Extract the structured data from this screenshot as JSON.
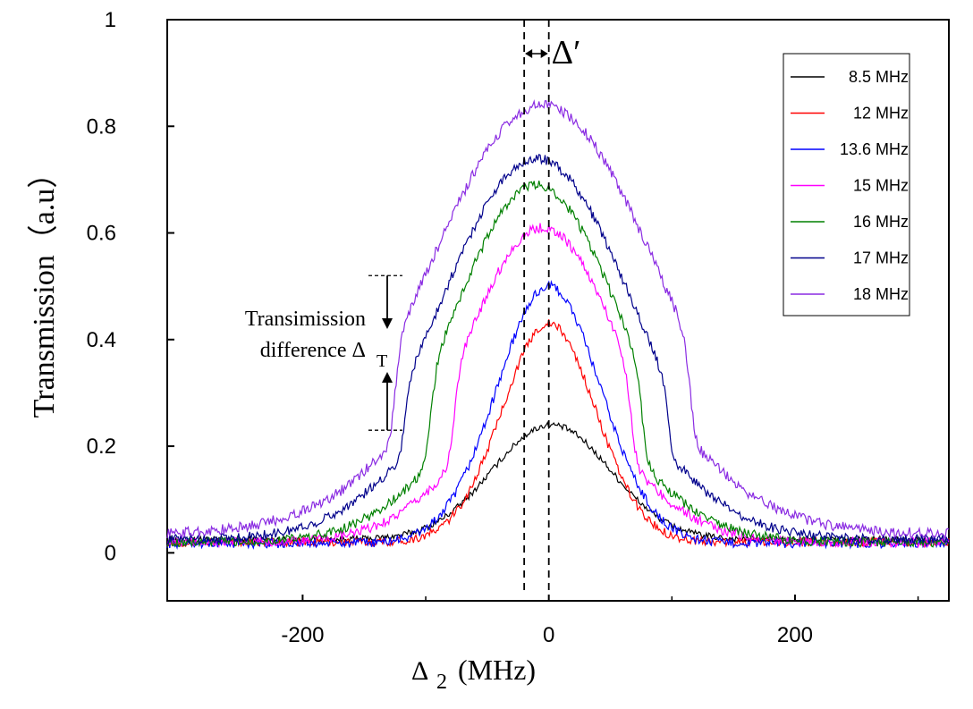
{
  "chart_data": {
    "type": "line",
    "xlabel": "Δ",
    "xlabel_sub": "2",
    "xlabel_unit": "(MHz)",
    "ylabel": "Transmission（a.u）",
    "xlim": [
      -310,
      325
    ],
    "ylim": [
      -0.09,
      1.0
    ],
    "x_ticks": [
      -200,
      0,
      200
    ],
    "x_tick_labels": [
      "-200",
      "0",
      "200"
    ],
    "y_ticks": [
      0,
      0.2,
      0.4,
      0.6,
      0.8,
      1
    ],
    "y_tick_labels": [
      "0",
      "0.2",
      "0.4",
      "0.6",
      "0.8",
      "1"
    ],
    "grid": false,
    "legend_position": "top-right",
    "delta_prime_label": "Δ′",
    "delta_prime_lines": [
      -20,
      0
    ],
    "annotation": {
      "line1": "Transimission",
      "line2": "difference Δ",
      "sub": "T",
      "y_top": 0.52,
      "y_bottom": 0.23
    },
    "series": [
      {
        "name": "8.5 MHz",
        "color": "#000000",
        "baseline": 0.025,
        "peak": 0.24,
        "center": 2,
        "width": 48,
        "plateau_half_width": 0,
        "noise": 0.006
      },
      {
        "name": "12 MHz",
        "color": "#ff0000",
        "baseline": 0.02,
        "peak": 0.43,
        "center": 0,
        "width": 38,
        "plateau_half_width": 0,
        "noise": 0.008
      },
      {
        "name": "13.6 MHz",
        "color": "#0000ff",
        "baseline": 0.018,
        "peak": 0.5,
        "center": 0,
        "width": 42,
        "plateau_half_width": 0,
        "noise": 0.009
      },
      {
        "name": "15 MHz",
        "color": "#ff00ff",
        "baseline": 0.02,
        "peak": 0.61,
        "center": -5,
        "width": 44,
        "plateau_half_width": 72,
        "noise": 0.009
      },
      {
        "name": "16 MHz",
        "color": "#008000",
        "baseline": 0.02,
        "peak": 0.69,
        "center": -10,
        "width": 48,
        "plateau_half_width": 86,
        "noise": 0.009
      },
      {
        "name": "17 MHz",
        "color": "#00008b",
        "baseline": 0.025,
        "peak": 0.74,
        "center": -10,
        "width": 54,
        "plateau_half_width": 108,
        "noise": 0.009
      },
      {
        "name": "18 MHz",
        "color": "#8a2be2",
        "baseline": 0.035,
        "peak": 0.84,
        "center": -5,
        "width": 64,
        "plateau_half_width": 120,
        "noise": 0.01
      }
    ]
  }
}
